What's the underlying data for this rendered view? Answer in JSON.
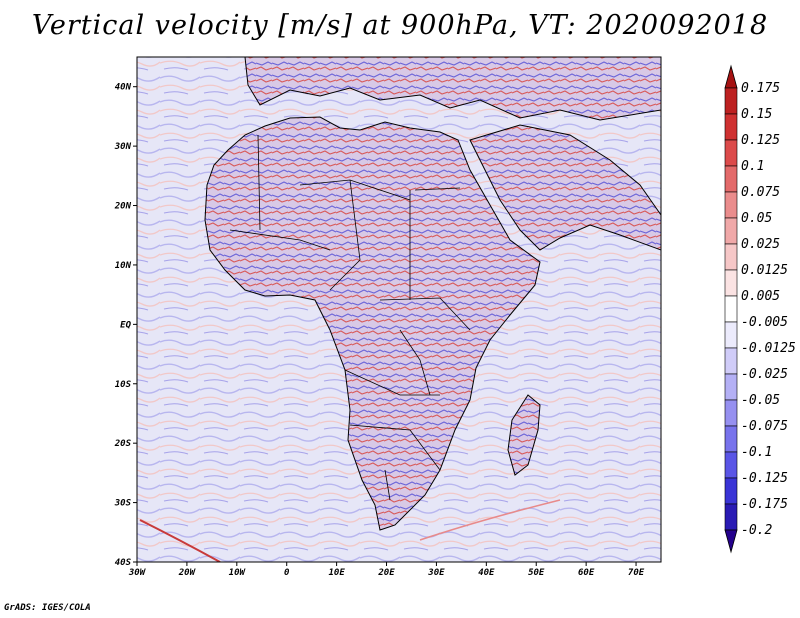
{
  "title": "Vertical velocity [m/s] at 900hPa, VT: 2020092018",
  "footer": "GrADS: IGES/COLA",
  "map": {
    "lon_range": [
      -30,
      75
    ],
    "lat_range": [
      -40,
      45
    ],
    "x_ticks": [
      {
        "lon": -30,
        "label": "30W"
      },
      {
        "lon": -20,
        "label": "20W"
      },
      {
        "lon": -10,
        "label": "10W"
      },
      {
        "lon": 0,
        "label": "0"
      },
      {
        "lon": 10,
        "label": "10E"
      },
      {
        "lon": 20,
        "label": "20E"
      },
      {
        "lon": 30,
        "label": "30E"
      },
      {
        "lon": 40,
        "label": "40E"
      },
      {
        "lon": 50,
        "label": "50E"
      },
      {
        "lon": 60,
        "label": "60E"
      },
      {
        "lon": 70,
        "label": "70E"
      }
    ],
    "y_ticks": [
      {
        "lat": 40,
        "label": "40N"
      },
      {
        "lat": 30,
        "label": "30N"
      },
      {
        "lat": 20,
        "label": "20N"
      },
      {
        "lat": 10,
        "label": "10N"
      },
      {
        "lat": 0,
        "label": "EQ"
      },
      {
        "lat": -10,
        "label": "10S"
      },
      {
        "lat": -20,
        "label": "20S"
      },
      {
        "lat": -30,
        "label": "30S"
      },
      {
        "lat": -40,
        "label": "40S"
      }
    ]
  },
  "colorbar": {
    "colors": [
      "#24008c",
      "#2a1bb4",
      "#3a34d6",
      "#5a55e6",
      "#7873ec",
      "#9690f0",
      "#b4b0f5",
      "#d0ccf8",
      "#ecebfc",
      "#ffffff",
      "#fbe3e3",
      "#f6c7c7",
      "#f0a8a8",
      "#ea8c8c",
      "#e36a6a",
      "#dc4b4b",
      "#cf3131",
      "#bd2121",
      "#a51212"
    ],
    "labels": [
      "0.175",
      "0.15",
      "0.125",
      "0.1",
      "0.075",
      "0.05",
      "0.025",
      "0.0125",
      "0.005",
      "-0.005",
      "-0.0125",
      "-0.025",
      "-0.05",
      "-0.075",
      "-0.1",
      "-0.125",
      "-0.175",
      "-0.2"
    ]
  }
}
